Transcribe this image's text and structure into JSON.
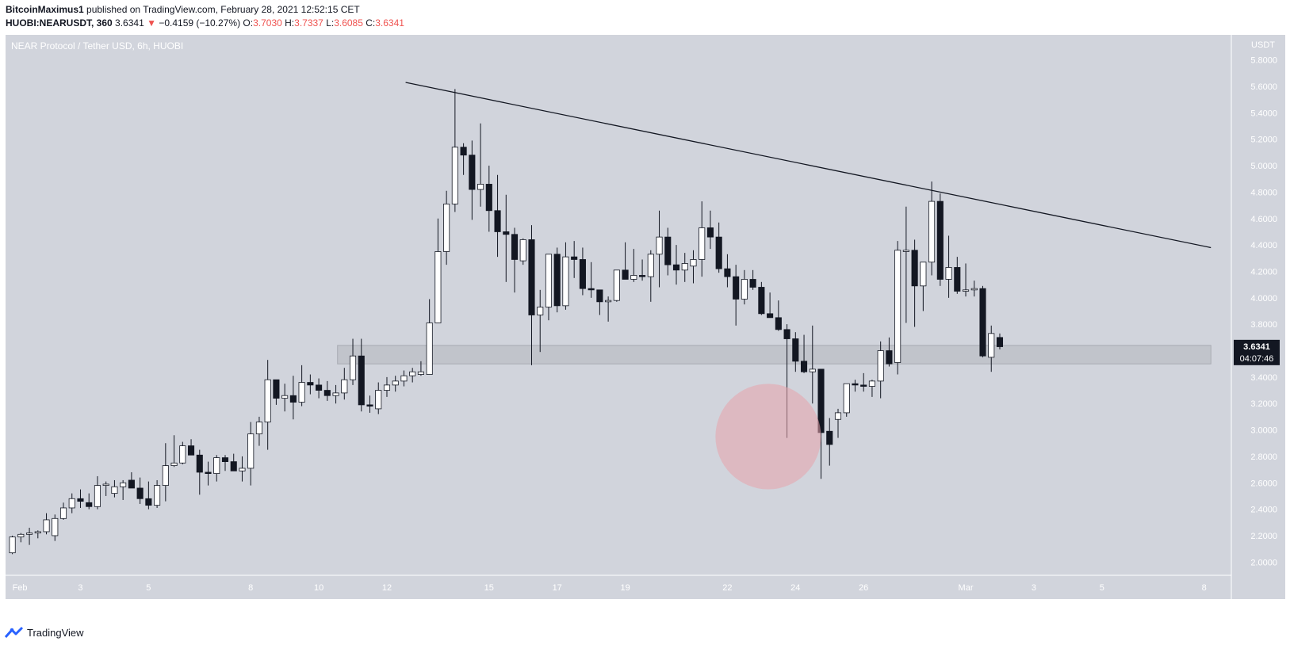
{
  "header": {
    "author": "BitcoinMaximus1",
    "published_text": " published on TradingView.com, February 28, 2021 12:52:15 CET",
    "symbol": "HUOBI:NEARUSDT, 360",
    "last": "3.6341",
    "change_arrow": "▼",
    "change": "−0.4159 (−10.27%)",
    "o_label": "O:",
    "o": "3.7030",
    "h_label": "H:",
    "h": "3.7337",
    "l_label": "L:",
    "l": "3.6085",
    "c_label": "C:",
    "c": "3.6341"
  },
  "footer": {
    "brand": "TradingView",
    "logo_icon": "tradingview-logo-icon"
  },
  "colors": {
    "background": "#d1d4dc",
    "up_body": "#ffffff",
    "down_body": "#131722",
    "wick": "#131722",
    "trendline": "#131722",
    "zone": "#bfc2c9",
    "circle": "#e8a3ab",
    "price_label_bg": "#131722"
  },
  "chart_data": {
    "type": "candlestick",
    "title": "NEAR Protocol / Tether USD, 6h, HUOBI",
    "currency_label": "USDT",
    "ylim": [
      1.9,
      5.99
    ],
    "y_ticks": [
      "5.8000",
      "5.6000",
      "5.4000",
      "5.2000",
      "5.0000",
      "4.8000",
      "4.6000",
      "4.4000",
      "4.2000",
      "4.0000",
      "3.8000",
      "3.6000",
      "3.4000",
      "3.2000",
      "3.0000",
      "2.8000",
      "2.6000",
      "2.4000",
      "2.2000",
      "2.0000"
    ],
    "x_ticks": [
      {
        "label": "Feb",
        "day": 0
      },
      {
        "label": "3",
        "day": 2
      },
      {
        "label": "5",
        "day": 4
      },
      {
        "label": "8",
        "day": 7
      },
      {
        "label": "10",
        "day": 9
      },
      {
        "label": "12",
        "day": 11
      },
      {
        "label": "15",
        "day": 14
      },
      {
        "label": "17",
        "day": 16
      },
      {
        "label": "19",
        "day": 18
      },
      {
        "label": "22",
        "day": 21
      },
      {
        "label": "24",
        "day": 23
      },
      {
        "label": "26",
        "day": 25
      },
      {
        "label": "Mar",
        "day": 28
      },
      {
        "label": "3",
        "day": 30
      },
      {
        "label": "5",
        "day": 32
      },
      {
        "label": "8",
        "day": 35
      }
    ],
    "x_range_days": [
      -0.2,
      35.8
    ],
    "candle_interval_days": 0.25,
    "first_candle_day": 0.0,
    "candles": [
      [
        2.07,
        2.2,
        2.06,
        2.19
      ],
      [
        2.19,
        2.22,
        2.15,
        2.21
      ],
      [
        2.21,
        2.26,
        2.13,
        2.22
      ],
      [
        2.22,
        2.24,
        2.18,
        2.23
      ],
      [
        2.23,
        2.37,
        2.21,
        2.32
      ],
      [
        2.2,
        2.36,
        2.16,
        2.33
      ],
      [
        2.33,
        2.45,
        2.32,
        2.41
      ],
      [
        2.41,
        2.52,
        2.37,
        2.48
      ],
      [
        2.48,
        2.55,
        2.41,
        2.46
      ],
      [
        2.45,
        2.52,
        2.4,
        2.42
      ],
      [
        2.42,
        2.65,
        2.4,
        2.58
      ],
      [
        2.58,
        2.61,
        2.5,
        2.59
      ],
      [
        2.52,
        2.62,
        2.49,
        2.57
      ],
      [
        2.57,
        2.62,
        2.47,
        2.6
      ],
      [
        2.62,
        2.68,
        2.56,
        2.56
      ],
      [
        2.56,
        2.64,
        2.44,
        2.48
      ],
      [
        2.48,
        2.61,
        2.4,
        2.43
      ],
      [
        2.43,
        2.62,
        2.41,
        2.58
      ],
      [
        2.58,
        2.9,
        2.46,
        2.73
      ],
      [
        2.73,
        2.96,
        2.72,
        2.75
      ],
      [
        2.75,
        2.91,
        2.74,
        2.88
      ],
      [
        2.88,
        2.93,
        2.81,
        2.81
      ],
      [
        2.81,
        2.85,
        2.51,
        2.68
      ],
      [
        2.68,
        2.76,
        2.58,
        2.67
      ],
      [
        2.67,
        2.81,
        2.61,
        2.79
      ],
      [
        2.79,
        2.81,
        2.69,
        2.76
      ],
      [
        2.76,
        2.82,
        2.7,
        2.69
      ],
      [
        2.69,
        2.8,
        2.61,
        2.71
      ],
      [
        2.71,
        3.06,
        2.58,
        2.97
      ],
      [
        2.97,
        3.1,
        2.88,
        3.06
      ],
      [
        3.06,
        3.53,
        2.85,
        3.38
      ],
      [
        3.38,
        3.36,
        3.19,
        3.24
      ],
      [
        3.24,
        3.35,
        3.14,
        3.26
      ],
      [
        3.26,
        3.41,
        3.08,
        3.21
      ],
      [
        3.21,
        3.49,
        3.18,
        3.36
      ],
      [
        3.36,
        3.42,
        3.27,
        3.34
      ],
      [
        3.34,
        3.39,
        3.24,
        3.3
      ],
      [
        3.3,
        3.37,
        3.22,
        3.26
      ],
      [
        3.26,
        3.34,
        3.2,
        3.28
      ],
      [
        3.28,
        3.47,
        3.23,
        3.38
      ],
      [
        3.38,
        3.69,
        3.34,
        3.56
      ],
      [
        3.56,
        3.69,
        3.14,
        3.19
      ],
      [
        3.19,
        3.26,
        3.13,
        3.18
      ],
      [
        3.16,
        3.36,
        3.12,
        3.3
      ],
      [
        3.3,
        3.4,
        3.25,
        3.34
      ],
      [
        3.34,
        3.41,
        3.29,
        3.37
      ],
      [
        3.37,
        3.45,
        3.33,
        3.41
      ],
      [
        3.41,
        3.47,
        3.36,
        3.44
      ],
      [
        3.42,
        3.52,
        3.41,
        3.44
      ],
      [
        3.42,
        3.99,
        3.43,
        3.81
      ],
      [
        3.81,
        4.6,
        3.81,
        4.35
      ],
      [
        4.35,
        4.81,
        4.25,
        4.71
      ],
      [
        4.71,
        5.58,
        4.65,
        5.14
      ],
      [
        5.14,
        5.17,
        4.93,
        5.08
      ],
      [
        5.08,
        5.19,
        4.59,
        4.82
      ],
      [
        4.82,
        5.32,
        4.69,
        4.86
      ],
      [
        4.86,
        5.0,
        4.5,
        4.66
      ],
      [
        4.66,
        4.93,
        4.31,
        4.5
      ],
      [
        4.5,
        4.78,
        4.12,
        4.48
      ],
      [
        4.48,
        4.53,
        4.04,
        4.29
      ],
      [
        4.28,
        4.45,
        4.25,
        4.44
      ],
      [
        4.44,
        4.55,
        3.49,
        3.87
      ],
      [
        3.87,
        4.06,
        3.59,
        3.93
      ],
      [
        3.93,
        4.33,
        3.83,
        4.33
      ],
      [
        4.33,
        4.38,
        3.89,
        3.94
      ],
      [
        3.94,
        4.42,
        3.91,
        4.31
      ],
      [
        4.31,
        4.43,
        4.15,
        4.29
      ],
      [
        4.29,
        4.38,
        4.02,
        4.07
      ],
      [
        4.07,
        4.27,
        4.0,
        4.06
      ],
      [
        4.06,
        4.06,
        3.87,
        3.97
      ],
      [
        3.97,
        4.01,
        3.82,
        3.98
      ],
      [
        3.98,
        4.18,
        3.97,
        4.21
      ],
      [
        4.21,
        4.42,
        4.15,
        4.14
      ],
      [
        4.14,
        4.37,
        4.12,
        4.17
      ],
      [
        4.17,
        4.29,
        4.13,
        4.16
      ],
      [
        4.16,
        4.36,
        3.97,
        4.33
      ],
      [
        4.33,
        4.66,
        4.08,
        4.46
      ],
      [
        4.46,
        4.53,
        4.17,
        4.25
      ],
      [
        4.25,
        4.4,
        4.1,
        4.21
      ],
      [
        4.21,
        4.34,
        4.12,
        4.26
      ],
      [
        4.24,
        4.36,
        4.11,
        4.29
      ],
      [
        4.29,
        4.73,
        4.16,
        4.53
      ],
      [
        4.53,
        4.66,
        4.37,
        4.46
      ],
      [
        4.46,
        4.57,
        4.19,
        4.22
      ],
      [
        4.22,
        4.33,
        4.08,
        4.16
      ],
      [
        4.16,
        4.25,
        3.79,
        3.99
      ],
      [
        3.99,
        4.21,
        3.95,
        4.14
      ],
      [
        4.14,
        4.21,
        4.06,
        4.08
      ],
      [
        4.08,
        4.12,
        3.87,
        3.88
      ],
      [
        3.88,
        4.04,
        3.86,
        3.85
      ],
      [
        3.85,
        3.98,
        3.75,
        3.76
      ],
      [
        3.76,
        3.8,
        2.94,
        3.69
      ],
      [
        3.69,
        3.74,
        3.44,
        3.52
      ],
      [
        3.52,
        3.72,
        3.43,
        3.44
      ],
      [
        3.44,
        3.79,
        3.2,
        3.46
      ],
      [
        3.46,
        3.46,
        2.63,
        2.98
      ],
      [
        2.99,
        3.09,
        2.73,
        2.89
      ],
      [
        3.08,
        3.16,
        2.94,
        3.13
      ],
      [
        3.13,
        3.32,
        3.1,
        3.35
      ],
      [
        3.35,
        3.38,
        3.29,
        3.34
      ],
      [
        3.34,
        3.43,
        3.29,
        3.33
      ],
      [
        3.33,
        3.38,
        3.25,
        3.37
      ],
      [
        3.37,
        3.67,
        3.24,
        3.6
      ],
      [
        3.6,
        3.7,
        3.48,
        3.5
      ],
      [
        3.51,
        4.43,
        3.42,
        4.36
      ],
      [
        4.35,
        4.69,
        3.81,
        4.36
      ],
      [
        4.36,
        4.44,
        3.78,
        4.09
      ],
      [
        4.09,
        4.23,
        3.9,
        4.27
      ],
      [
        4.27,
        4.88,
        4.17,
        4.73
      ],
      [
        4.73,
        4.79,
        4.09,
        4.14
      ],
      [
        4.14,
        4.47,
        4.0,
        4.23
      ],
      [
        4.23,
        4.31,
        4.03,
        4.05
      ],
      [
        4.05,
        4.26,
        4.01,
        4.06
      ],
      [
        4.06,
        4.13,
        4.01,
        4.07
      ],
      [
        4.07,
        4.09,
        3.55,
        3.56
      ],
      [
        3.55,
        3.79,
        3.44,
        3.73
      ],
      [
        3.7,
        3.73,
        3.61,
        3.63
      ]
    ],
    "trendline": [
      {
        "day": 11.55,
        "price": 5.63
      },
      {
        "day": 35.2,
        "price": 4.38
      }
    ],
    "support_zone": {
      "from_day": 9.55,
      "to_day": 35.2,
      "low": 3.5,
      "high": 3.64
    },
    "highlight_circle": {
      "day": 22.2,
      "price": 2.95,
      "radius_days": 1.55
    },
    "last_price_label": {
      "price": 3.6341,
      "value": "3.6341",
      "countdown": "04:07:46"
    }
  }
}
